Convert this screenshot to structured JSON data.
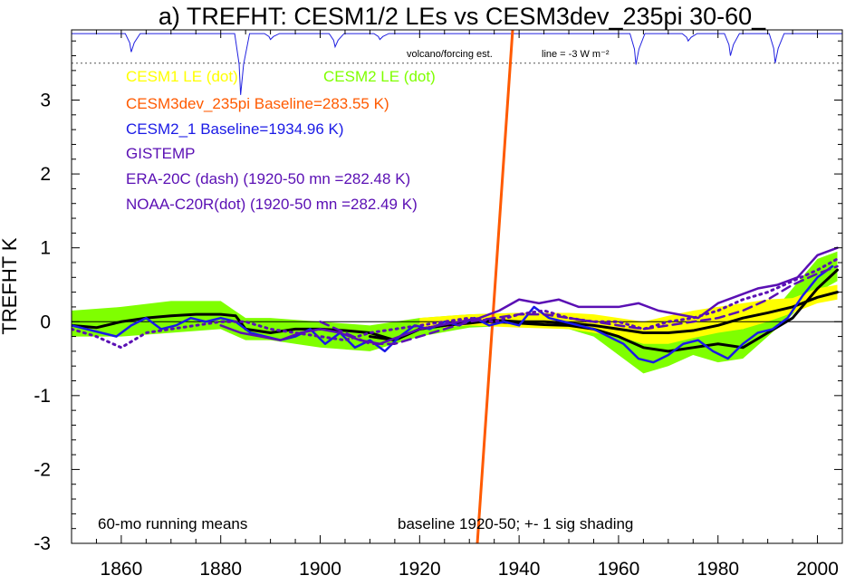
{
  "chart_data": {
    "type": "line",
    "title": "a) TREFHT: CESM1/2 LEs vs CESM3dev_235pi 30-60_",
    "xlabel": "",
    "ylabel": "TREFHT K",
    "xlim": [
      1850,
      2005
    ],
    "ylim": [
      -3,
      3.95
    ],
    "x_ticks": [
      1860,
      1880,
      1900,
      1920,
      1940,
      1960,
      1980,
      2000
    ],
    "y_ticks": [
      -3,
      -2,
      -1,
      0,
      1,
      2,
      3
    ],
    "grid": false,
    "legend": [
      {
        "text": "CESM1 LE (dot)",
        "color": "#ffff00"
      },
      {
        "text": "CESM2 LE (dot)",
        "color": "#7fff00"
      },
      {
        "text": "CESM3dev_235pi Baseline=283.55 K)",
        "color": "#ff5a00"
      },
      {
        "text": "CESM2_1 Baseline=1934.96 K)",
        "color": "#1a1ae6"
      },
      {
        "text": "GISTEMP",
        "color": "#5a0fb4"
      },
      {
        "text": "ERA-20C (dash) (1920-50 mn =282.48 K)",
        "color": "#5a0fb4"
      },
      {
        "text": "NOAA-C20R(dot) (1920-50 mn =282.49 K)",
        "color": "#5a0fb4"
      }
    ],
    "annotations": {
      "volcano_label": "volcano/forcing est.",
      "line_label": "line = -3 W m⁻²",
      "bottom_left": "60-mo running means",
      "bottom_right": "baseline 1920-50; +- 1 sig shading"
    },
    "volcano_reference_y": 3.5,
    "volcano_baseline_y": 3.9,
    "volcano_events": [
      {
        "year": 1862,
        "y": 3.65
      },
      {
        "year": 1884,
        "y": 3.07
      },
      {
        "year": 1890,
        "y": 3.82
      },
      {
        "year": 1903,
        "y": 3.72
      },
      {
        "year": 1912,
        "y": 3.82
      },
      {
        "year": 1963.5,
        "y": 3.48
      },
      {
        "year": 1974,
        "y": 3.8
      },
      {
        "year": 1982.5,
        "y": 3.6
      },
      {
        "year": 1991.5,
        "y": 3.5
      }
    ],
    "series": [
      {
        "name": "CESM2 LE spread",
        "kind": "band",
        "color": "#7fff00",
        "x": [
          1850,
          1860,
          1870,
          1880,
          1885,
          1890,
          1900,
          1910,
          1920,
          1930,
          1940,
          1950,
          1955,
          1960,
          1965,
          1970,
          1975,
          1980,
          1985,
          1990,
          1995,
          2000,
          2004
        ],
        "upper": [
          0.15,
          0.2,
          0.28,
          0.28,
          0.05,
          0.05,
          0.0,
          -0.05,
          0.05,
          0.1,
          0.12,
          0.05,
          0.0,
          -0.15,
          -0.25,
          -0.2,
          -0.1,
          -0.12,
          -0.1,
          0.05,
          0.45,
          0.85,
          0.95
        ],
        "lower": [
          -0.2,
          -0.2,
          -0.15,
          -0.1,
          -0.25,
          -0.25,
          -0.35,
          -0.4,
          -0.2,
          -0.08,
          -0.05,
          -0.1,
          -0.2,
          -0.45,
          -0.7,
          -0.6,
          -0.45,
          -0.55,
          -0.5,
          -0.2,
          0.1,
          0.4,
          0.55
        ]
      },
      {
        "name": "CESM1 LE spread",
        "kind": "band",
        "color": "#ffff00",
        "x": [
          1920,
          1930,
          1940,
          1950,
          1955,
          1960,
          1965,
          1970,
          1975,
          1980,
          1985,
          1990,
          1995,
          2000,
          2004
        ],
        "upper": [
          0.05,
          0.1,
          0.12,
          0.12,
          0.1,
          0.05,
          0.0,
          0.08,
          0.15,
          0.2,
          0.25,
          0.3,
          0.32,
          0.45,
          0.5
        ],
        "lower": [
          -0.1,
          -0.05,
          -0.08,
          -0.1,
          -0.15,
          -0.2,
          -0.3,
          -0.3,
          -0.22,
          -0.15,
          -0.1,
          0.0,
          0.12,
          0.25,
          0.3
        ]
      },
      {
        "name": "CESM3dev_235pi",
        "color": "#ff5a00",
        "width": 3,
        "x": [
          1931.6,
          1938.7
        ],
        "y": [
          -3.0,
          3.95
        ]
      },
      {
        "name": "CESM1 LE mean",
        "color": "#000000",
        "width": 3,
        "x": [
          1850,
          1855,
          1860,
          1865,
          1870,
          1875,
          1880,
          1883,
          1885,
          1890,
          1895,
          1900,
          1905,
          1910,
          1915,
          1920,
          1925,
          1930,
          1935,
          1940,
          1945,
          1950,
          1955,
          1960,
          1965,
          1970,
          1975,
          1980,
          1985,
          1990,
          1995,
          2000,
          2004
        ],
        "y": [
          -0.05,
          -0.08,
          0.0,
          0.05,
          0.08,
          0.1,
          0.1,
          0.08,
          -0.1,
          -0.15,
          -0.1,
          -0.1,
          -0.12,
          -0.15,
          -0.25,
          -0.1,
          -0.05,
          -0.02,
          0.02,
          0.0,
          0.0,
          -0.02,
          -0.05,
          -0.1,
          -0.15,
          -0.15,
          -0.12,
          -0.05,
          0.05,
          0.12,
          0.2,
          0.33,
          0.4
        ]
      },
      {
        "name": "CESM2 LE mean",
        "color": "#000000",
        "width": 3,
        "x": [
          1910,
          1915,
          1920,
          1925,
          1930,
          1935,
          1940,
          1945,
          1950,
          1955,
          1960,
          1965,
          1970,
          1975,
          1980,
          1985,
          1990,
          1995,
          2000,
          2004
        ],
        "y": [
          -0.2,
          -0.25,
          -0.1,
          -0.05,
          0.0,
          0.0,
          -0.02,
          -0.04,
          -0.05,
          -0.1,
          -0.2,
          -0.35,
          -0.4,
          -0.35,
          -0.3,
          -0.35,
          -0.15,
          0.05,
          0.45,
          0.7
        ]
      },
      {
        "name": "CESM2_1",
        "color": "#1a1ae6",
        "width": 2.5,
        "x": [
          1850,
          1853,
          1856,
          1859,
          1862,
          1865,
          1868,
          1871,
          1874,
          1877,
          1880,
          1883,
          1886,
          1889,
          1892,
          1895,
          1898,
          1901,
          1904,
          1907,
          1910,
          1913,
          1916,
          1919,
          1922,
          1925,
          1928,
          1931,
          1934,
          1937,
          1940,
          1943,
          1946,
          1949,
          1952,
          1955,
          1958,
          1961,
          1964,
          1967,
          1970,
          1973,
          1976,
          1979,
          1982,
          1985,
          1988,
          1991,
          1994,
          1997,
          2000,
          2003
        ],
        "y": [
          -0.05,
          -0.1,
          -0.15,
          -0.2,
          -0.05,
          0.05,
          -0.1,
          -0.05,
          0.05,
          0.0,
          0.05,
          0.0,
          -0.15,
          -0.2,
          -0.25,
          -0.2,
          -0.1,
          -0.3,
          -0.15,
          -0.35,
          -0.25,
          -0.4,
          -0.2,
          -0.05,
          -0.1,
          0.0,
          -0.05,
          0.05,
          -0.05,
          0.0,
          -0.05,
          0.2,
          0.05,
          0.0,
          -0.05,
          -0.1,
          -0.2,
          -0.3,
          -0.5,
          -0.55,
          -0.45,
          -0.3,
          -0.25,
          -0.4,
          -0.5,
          -0.3,
          -0.15,
          -0.1,
          0.05,
          0.35,
          0.6,
          0.75
        ]
      },
      {
        "name": "GISTEMP",
        "color": "#5a0fb4",
        "width": 2.5,
        "x": [
          1880,
          1884,
          1888,
          1892,
          1896,
          1900,
          1904,
          1908,
          1912,
          1916,
          1920,
          1924,
          1928,
          1932,
          1936,
          1940,
          1944,
          1948,
          1952,
          1956,
          1960,
          1964,
          1968,
          1972,
          1976,
          1980,
          1984,
          1988,
          1992,
          1996,
          2000,
          2004
        ],
        "y": [
          -0.05,
          -0.15,
          -0.2,
          -0.25,
          -0.15,
          -0.1,
          -0.15,
          -0.25,
          -0.3,
          -0.2,
          -0.1,
          -0.05,
          0.0,
          0.05,
          0.15,
          0.3,
          0.25,
          0.3,
          0.2,
          0.2,
          0.2,
          0.25,
          0.15,
          0.1,
          0.05,
          0.25,
          0.35,
          0.45,
          0.5,
          0.6,
          0.9,
          1.0
        ]
      },
      {
        "name": "ERA-20C",
        "color": "#5a0fb4",
        "width": 2.5,
        "dash": "10,6",
        "x": [
          1900,
          1905,
          1910,
          1915,
          1920,
          1925,
          1930,
          1935,
          1940,
          1945,
          1950,
          1955,
          1960,
          1965,
          1970,
          1975,
          1980,
          1985,
          1990,
          1995,
          2000,
          2004
        ],
        "y": [
          0.0,
          -0.15,
          -0.3,
          -0.3,
          -0.2,
          -0.1,
          0.0,
          0.05,
          0.1,
          0.1,
          0.05,
          0.0,
          -0.05,
          -0.1,
          -0.05,
          0.0,
          0.05,
          0.15,
          0.3,
          0.5,
          0.65,
          0.75
        ]
      },
      {
        "name": "NOAA-C20R",
        "color": "#5a0fb4",
        "width": 3,
        "dash": "2,5",
        "x": [
          1850,
          1855,
          1860,
          1865,
          1870,
          1875,
          1880,
          1885,
          1890,
          1895,
          1900,
          1905,
          1910,
          1915,
          1920,
          1925,
          1930,
          1935,
          1940,
          1945,
          1950,
          1955,
          1960,
          1965,
          1970,
          1975,
          1980,
          1985,
          1990,
          1995,
          2000,
          2004
        ],
        "y": [
          -0.1,
          -0.2,
          -0.35,
          -0.15,
          -0.1,
          -0.05,
          0.0,
          0.0,
          -0.1,
          -0.15,
          -0.2,
          -0.25,
          -0.15,
          -0.1,
          -0.05,
          0.0,
          0.05,
          0.0,
          0.1,
          0.15,
          0.05,
          0.0,
          0.0,
          -0.1,
          0.0,
          0.05,
          0.15,
          0.3,
          0.4,
          0.55,
          0.7,
          0.85
        ]
      }
    ]
  }
}
